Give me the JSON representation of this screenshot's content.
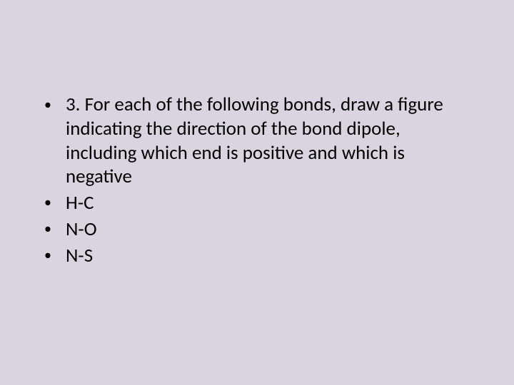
{
  "slide": {
    "background_color": "#d9d4e0",
    "text_color": "#000000",
    "font_family": "Calibri",
    "body_fontsize_pt": 27,
    "bullet_char": "•",
    "items": [
      {
        "text": "3.  For each of the following bonds, draw a figure indicating the direction of the bond dipole, including which end is positive and which is negative",
        "level": 0
      },
      {
        "text": "H-C",
        "level": 0
      },
      {
        "text": "N-O",
        "level": 0
      },
      {
        "text": "N-S",
        "level": 0
      }
    ]
  }
}
